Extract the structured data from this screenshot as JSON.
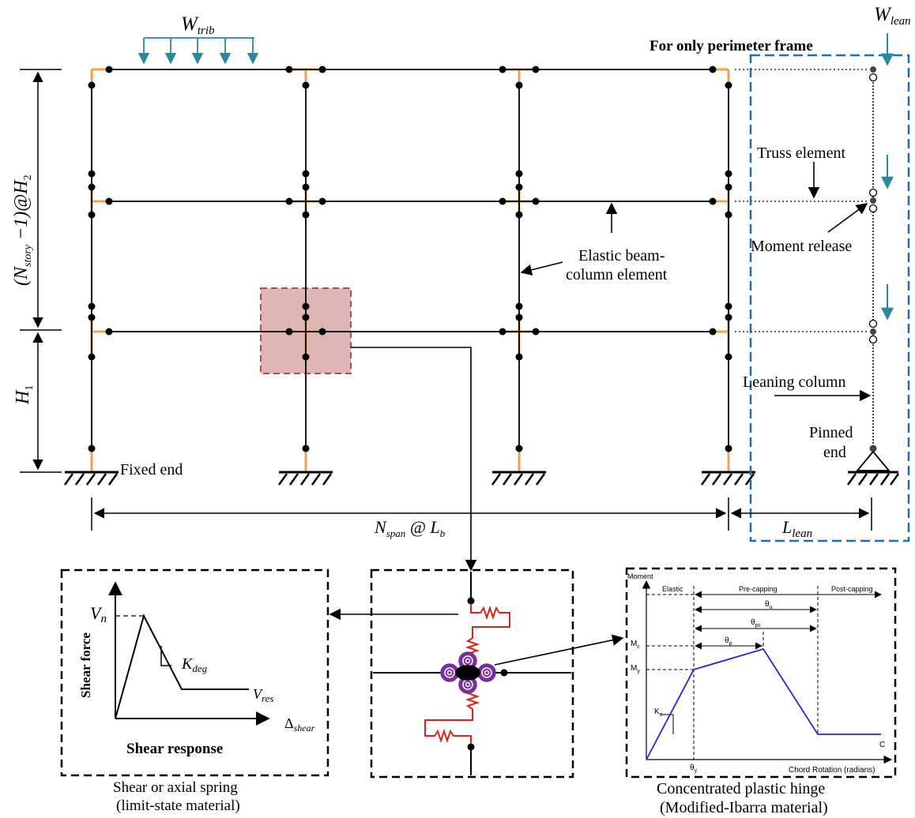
{
  "frame": {
    "w_trib": "W",
    "w_trib_sub": "trib",
    "w_lean": "W",
    "w_lean_sub": "lean",
    "perimeter_note": "For only perimeter frame",
    "story_dim_open": "(N",
    "story_dim_sub": "story",
    "story_dim_tail": " −1)@H",
    "story_dim_sub2": "2",
    "h1": "H",
    "h1_sub": "1",
    "fixed_end": "Fixed end",
    "span_dim": "N",
    "span_dim_sub": "span",
    "span_dim_tail": " @ L",
    "span_dim_sub2": "b",
    "l_lean": "L",
    "l_lean_sub": "lean",
    "truss_element": "Truss element",
    "moment_release": "Moment release",
    "elastic_beam_line1": "Elastic beam-",
    "elastic_beam_line2": "column element",
    "leaning_column": "Leaning column",
    "pinned_line1": "Pinned",
    "pinned_line2": "end"
  },
  "shear_panel": {
    "vn": "V",
    "vn_sub": "n",
    "y_axis": "Shear force",
    "k_deg": "K",
    "k_deg_sub": "deg",
    "v_res": "V",
    "v_res_sub": "res",
    "x_axis": "Δ",
    "x_axis_sub": "shear",
    "title": "Shear response",
    "caption_line1": "Shear or axial spring",
    "caption_line2": "(limit-state material)"
  },
  "hinge_panel": {
    "y_axis": "Moment",
    "elastic": "Elastic",
    "pre_capping": "Pre-capping",
    "post_capping": "Post-capping",
    "theta_u": "θ",
    "theta_u_sub": "u",
    "theta_pc": "θ",
    "theta_pc_sub": "pc",
    "theta_p": "θ",
    "theta_p_sub": "p",
    "mc": "M",
    "mc_sub": "c",
    "my": "M",
    "my_sub": "y",
    "ke": "K",
    "ke_sub": "e",
    "c_label": "C",
    "theta_y": "θ",
    "theta_y_sub": "y",
    "x_axis": "Chord Rotation (radians)",
    "caption_line1": "Concentrated plastic hinge",
    "caption_line2": "(Modified-Ibarra material)"
  },
  "colors": {
    "member": "#000000",
    "hinge_zone": "#f0a050",
    "load_arrow": "#2a8a9c",
    "perimeter_box": "#1a6fc4",
    "highlight_fill": "#d9a9a9",
    "highlight_edge": "#b24c4c",
    "spring": "#e0201a",
    "rot_spring": "#7a2fa0",
    "backbone": "#2424e0"
  }
}
